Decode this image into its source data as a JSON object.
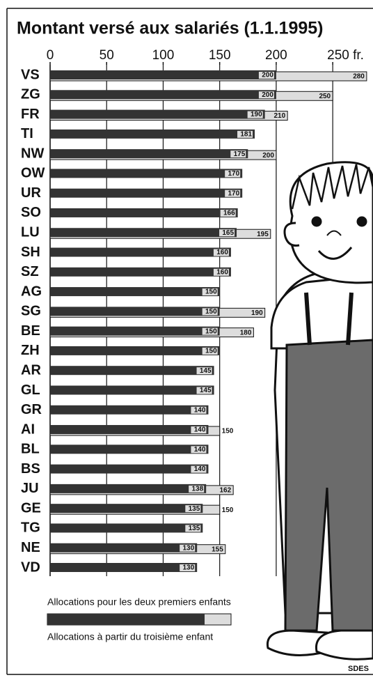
{
  "chart_data": {
    "type": "bar",
    "orientation": "horizontal",
    "title": "Montant versé aux salariés (1.1.1995)",
    "source": "SDES",
    "categories": [
      "VS",
      "ZG",
      "FR",
      "TI",
      "NW",
      "OW",
      "UR",
      "SO",
      "LU",
      "SH",
      "SZ",
      "AG",
      "SG",
      "BE",
      "ZH",
      "AR",
      "GL",
      "GR",
      "AI",
      "BL",
      "BS",
      "JU",
      "GE",
      "TG",
      "NE",
      "VD"
    ],
    "series": [
      {
        "name": "Allocations pour les deux premiers enfants",
        "color": "#333333",
        "values": [
          200,
          200,
          190,
          181,
          175,
          170,
          170,
          166,
          165,
          160,
          160,
          150,
          150,
          150,
          150,
          145,
          145,
          140,
          140,
          140,
          140,
          138,
          135,
          135,
          130,
          130
        ]
      },
      {
        "name": "Allocations à partir du troisième enfant",
        "color": "#dddddd",
        "values": [
          280,
          250,
          210,
          null,
          200,
          null,
          null,
          null,
          195,
          null,
          null,
          null,
          190,
          180,
          null,
          null,
          null,
          null,
          150,
          null,
          null,
          162,
          150,
          null,
          155,
          null
        ]
      }
    ],
    "xlim": [
      0,
      285
    ],
    "xticks": [
      0,
      50,
      100,
      150,
      200,
      {
        "value": 250,
        "label": "250 fr."
      }
    ],
    "grid": true
  }
}
